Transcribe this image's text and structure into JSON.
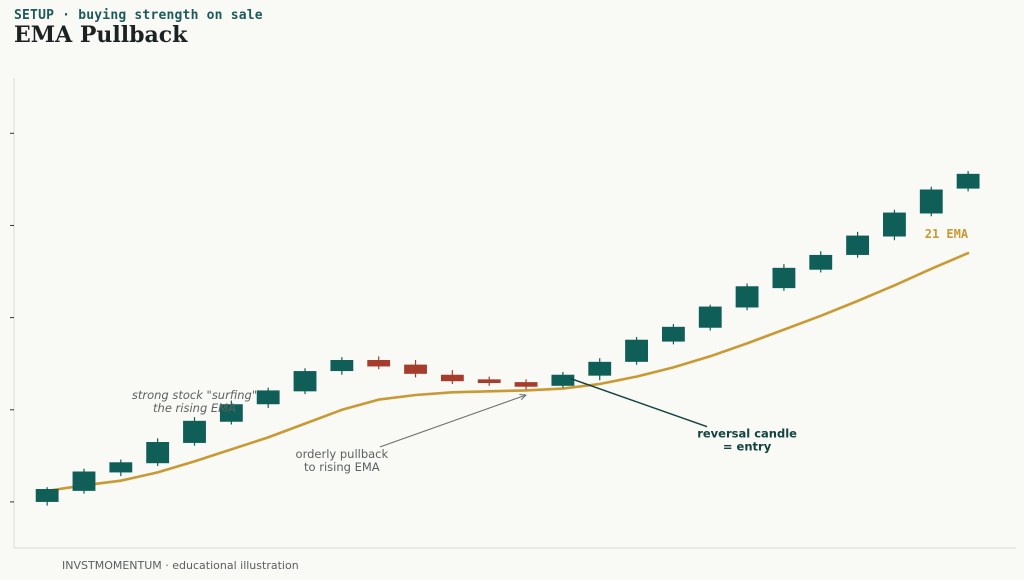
{
  "header": {
    "kicker": "SETUP · buying strength on sale",
    "title": "EMA Pullback"
  },
  "footer": {
    "text": "INVSTMOMENTUM · educational illustration"
  },
  "colors": {
    "bull": "#0f5e58",
    "bear": "#a63d2c",
    "ema": "#c99a34",
    "axis": "#dcdcd6",
    "arrow_gray": "#6a6e6e",
    "arrow_dark": "#12433f"
  },
  "chart_data": {
    "type": "candlestick",
    "ylim": [
      -5,
      46
    ],
    "xlim": [
      0.1,
      27.3
    ],
    "grid": false,
    "ticks": [
      0,
      10,
      20,
      30,
      40
    ],
    "candles": [
      {
        "x": 1,
        "open": 0.0,
        "close": 1.4,
        "high": 1.6,
        "low": -0.4
      },
      {
        "x": 2,
        "open": 1.2,
        "close": 3.3,
        "high": 3.6,
        "low": 0.9
      },
      {
        "x": 3,
        "open": 3.2,
        "close": 4.3,
        "high": 4.6,
        "low": 2.8
      },
      {
        "x": 4,
        "open": 4.2,
        "close": 6.5,
        "high": 6.9,
        "low": 3.9
      },
      {
        "x": 5,
        "open": 6.4,
        "close": 8.8,
        "high": 9.2,
        "low": 6.1
      },
      {
        "x": 6,
        "open": 8.7,
        "close": 10.6,
        "high": 11.0,
        "low": 8.4
      },
      {
        "x": 7,
        "open": 10.6,
        "close": 12.1,
        "high": 12.4,
        "low": 10.2
      },
      {
        "x": 8,
        "open": 12.0,
        "close": 14.2,
        "high": 14.5,
        "low": 11.7
      },
      {
        "x": 9,
        "open": 14.2,
        "close": 15.4,
        "high": 15.7,
        "low": 13.8
      },
      {
        "x": 10,
        "open": 15.4,
        "close": 14.7,
        "high": 15.8,
        "low": 14.4
      },
      {
        "x": 11,
        "open": 14.9,
        "close": 13.9,
        "high": 15.4,
        "low": 13.5
      },
      {
        "x": 12,
        "open": 13.8,
        "close": 13.1,
        "high": 14.3,
        "low": 12.8
      },
      {
        "x": 13,
        "open": 13.3,
        "close": 12.9,
        "high": 13.6,
        "low": 12.6
      },
      {
        "x": 14,
        "open": 13.0,
        "close": 12.5,
        "high": 13.3,
        "low": 12.2
      },
      {
        "x": 15,
        "open": 12.6,
        "close": 13.8,
        "high": 14.1,
        "low": 12.4
      },
      {
        "x": 16,
        "open": 13.7,
        "close": 15.2,
        "high": 15.6,
        "low": 13.2
      },
      {
        "x": 17,
        "open": 15.2,
        "close": 17.6,
        "high": 17.9,
        "low": 14.9
      },
      {
        "x": 18,
        "open": 17.4,
        "close": 19.0,
        "high": 19.3,
        "low": 17.1
      },
      {
        "x": 19,
        "open": 18.9,
        "close": 21.2,
        "high": 21.4,
        "low": 18.6
      },
      {
        "x": 20,
        "open": 21.1,
        "close": 23.4,
        "high": 23.7,
        "low": 20.8
      },
      {
        "x": 21,
        "open": 23.2,
        "close": 25.4,
        "high": 25.8,
        "low": 22.9
      },
      {
        "x": 22,
        "open": 25.2,
        "close": 26.8,
        "high": 27.2,
        "low": 24.9
      },
      {
        "x": 23,
        "open": 26.8,
        "close": 28.9,
        "high": 29.3,
        "low": 26.5
      },
      {
        "x": 24,
        "open": 28.8,
        "close": 31.4,
        "high": 31.7,
        "low": 28.4
      },
      {
        "x": 25,
        "open": 31.3,
        "close": 33.9,
        "high": 34.2,
        "low": 31.0
      },
      {
        "x": 26,
        "open": 34.0,
        "close": 35.6,
        "high": 35.9,
        "low": 33.7
      }
    ],
    "ema": {
      "label": "21 EMA",
      "x": [
        1,
        2,
        3,
        4,
        5,
        6,
        7,
        8,
        9,
        10,
        11,
        12,
        13,
        14,
        15,
        16,
        17,
        18,
        19,
        20,
        21,
        22,
        23,
        24,
        25,
        26
      ],
      "y": [
        1.2,
        1.8,
        2.3,
        3.2,
        4.4,
        5.7,
        7.0,
        8.5,
        10.0,
        11.1,
        11.6,
        11.9,
        12.0,
        12.1,
        12.3,
        12.8,
        13.6,
        14.6,
        15.8,
        17.2,
        18.7,
        20.2,
        21.8,
        23.5,
        25.3,
        27.0
      ]
    },
    "annotations": [
      {
        "id": "surf",
        "lines": [
          "strong stock \"surfing\"",
          "the rising EMA"
        ],
        "style": "italic",
        "x": 5,
        "y": 10.9
      },
      {
        "id": "pullback",
        "lines": [
          "orderly pullback",
          "to rising EMA"
        ],
        "style": "plain",
        "x": 9,
        "y": 4.5,
        "arrow_to": [
          14,
          11.6
        ]
      },
      {
        "id": "entry",
        "lines": [
          "reversal candle",
          "= entry"
        ],
        "style": "bold",
        "x": 20,
        "y": 6.7,
        "arrow_to": [
          15.2,
          13.4
        ]
      }
    ]
  }
}
